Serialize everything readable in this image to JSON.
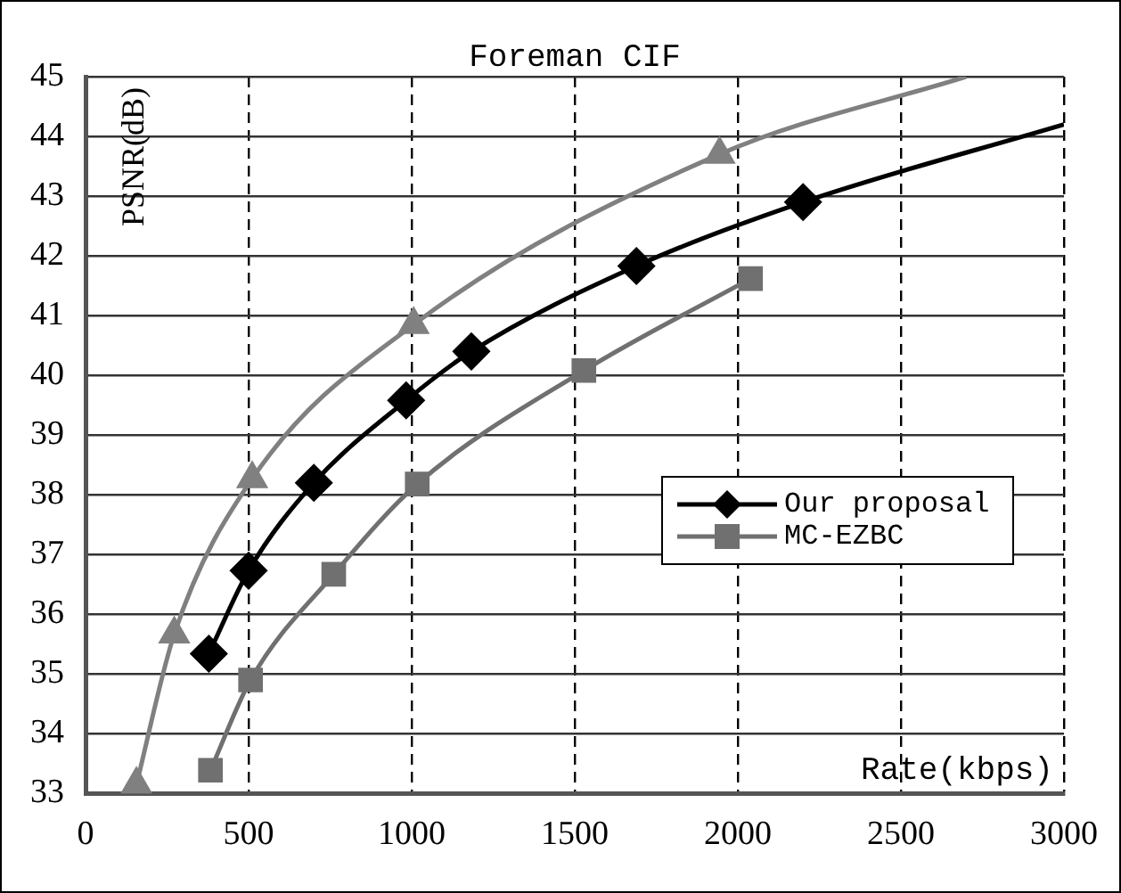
{
  "chart_data": {
    "type": "line",
    "title": "Foreman CIF",
    "xlabel": "Rate(kbps)",
    "ylabel": "PSNR(dB)",
    "xlim": [
      0,
      3000
    ],
    "xticks": [
      0,
      500,
      1000,
      1500,
      2000,
      2500,
      3000
    ],
    "ylim": [
      33,
      45
    ],
    "yticks": [
      33,
      34,
      35,
      36,
      37,
      38,
      39,
      40,
      41,
      42,
      43,
      44,
      45
    ],
    "grid": true,
    "legend": "right",
    "series": [
      {
        "name": "Our proposal",
        "color": "#000000",
        "marker": "diamond",
        "x": [
          378,
          500,
          700,
          983,
          1183,
          1689,
          2200,
          3000
        ],
        "values": [
          35.34,
          36.73,
          38.2,
          39.58,
          40.4,
          41.83,
          42.9,
          44.2
        ]
      },
      {
        "name": "MC-EZBC",
        "color": "#707070",
        "marker": "square",
        "x": [
          383,
          506,
          761,
          1017,
          1528,
          2039
        ],
        "values": [
          33.39,
          34.9,
          36.67,
          38.18,
          40.08,
          41.62
        ]
      },
      {
        "color": "#808080",
        "marker": "triangle",
        "x": [
          156,
          272,
          511,
          1006,
          1944,
          2700
        ],
        "values": [
          33.15,
          35.67,
          38.27,
          40.85,
          43.7,
          45
        ]
      }
    ]
  }
}
